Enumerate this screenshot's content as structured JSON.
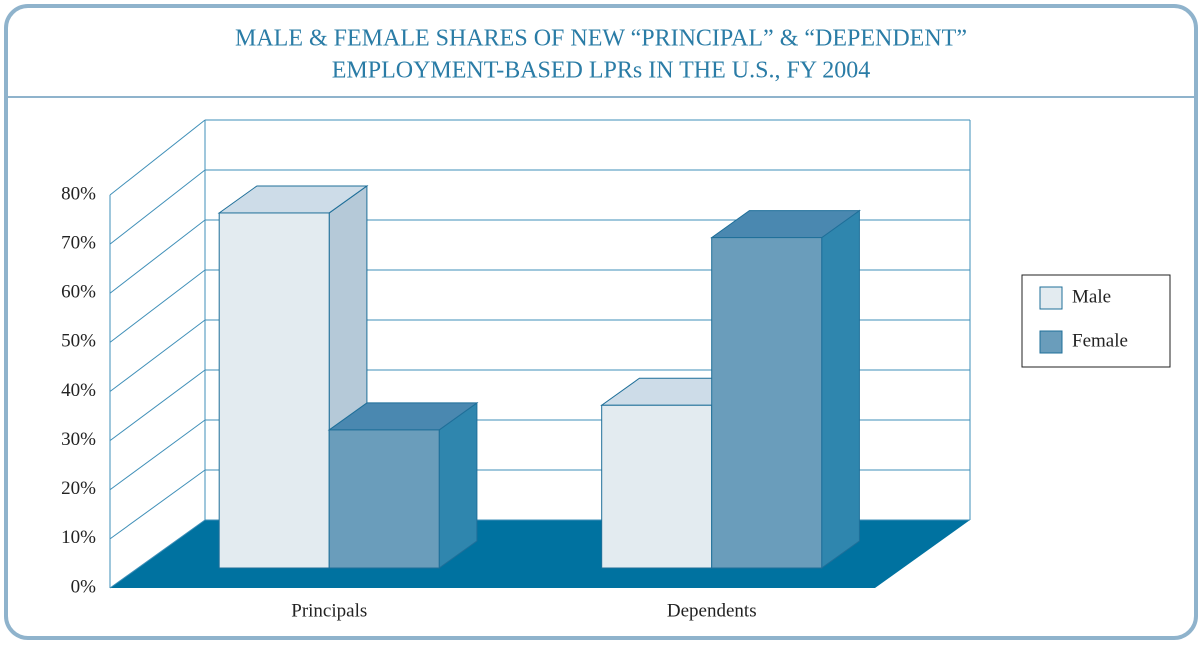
{
  "chart_data": {
    "type": "bar3d",
    "title": [
      "MALE & FEMALE SHARES OF NEW “PRINCIPAL” & “DEPENDENT”",
      "EMPLOYMENT-BASED LPRs IN THE U.S., FY 2004"
    ],
    "categories": [
      "Principals",
      "Dependents"
    ],
    "series": [
      {
        "name": "Male",
        "color": "#e3ebf0",
        "values": [
          72,
          33
        ]
      },
      {
        "name": "Female",
        "color": "#6a9dbb",
        "values": [
          28,
          67
        ]
      }
    ],
    "ylim": [
      0,
      80
    ],
    "yticks": [
      {
        "value": 0,
        "label": "0%"
      },
      {
        "value": 10,
        "label": "10%"
      },
      {
        "value": 20,
        "label": "20%"
      },
      {
        "value": 30,
        "label": "30%"
      },
      {
        "value": 40,
        "label": "40%"
      },
      {
        "value": 50,
        "label": "50%"
      },
      {
        "value": 60,
        "label": "60%"
      },
      {
        "value": 70,
        "label": "70%"
      },
      {
        "value": 80,
        "label": "80%"
      }
    ],
    "grid": true,
    "legend": "right"
  }
}
